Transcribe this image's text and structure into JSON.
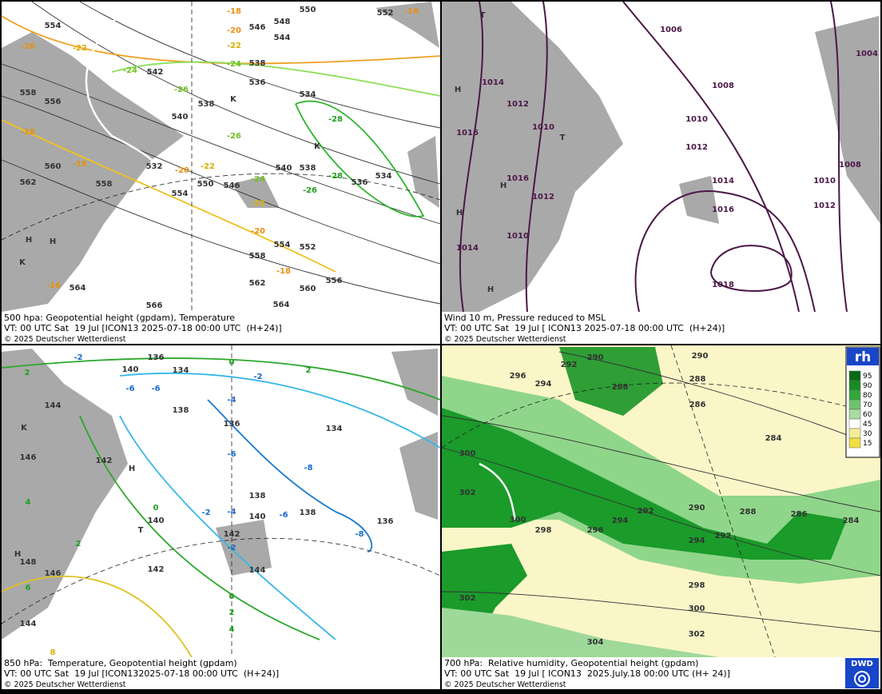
{
  "panels": [
    {
      "caption": [
        "500 hpa: Geopotential height (gpdam), Temperature",
        "VT: 00 UTC Sat  19 Jul [ICON13 2025-07-18 00:00 UTC  (H+24)]",
        "© 2025 Deutscher Wetterdienst"
      ],
      "labels": [
        "550",
        "552",
        "548",
        "546",
        "544",
        "542",
        "538",
        "536",
        "534",
        "540",
        "538",
        "532",
        "540",
        "538",
        "536",
        "534",
        "554",
        "550",
        "546",
        "556",
        "558",
        "560",
        "562",
        "564",
        "566",
        "554",
        "552",
        "558",
        "560",
        "562",
        "564",
        "556",
        "558",
        "554",
        "-18",
        "-20",
        "-22",
        "-24",
        "-26",
        "-26",
        "-28",
        "-28",
        "-26",
        "-24",
        "-22",
        "-20",
        "-18",
        "-18",
        "-16",
        "-16",
        "-20",
        "-22",
        "-24",
        "-22",
        "-20",
        "-18",
        "H",
        "H",
        "K",
        "K",
        "K"
      ]
    },
    {
      "caption": [
        "Wind 10 m, Pressure reduced to MSL",
        "VT: 00 UTC Sat  19 Jul [ ICON13 2025-07-18 00:00 UTC  (H+24)]",
        "© 2025 Deutscher Wetterdienst"
      ],
      "labels": [
        "1006",
        "1004",
        "1014",
        "1012",
        "1008",
        "1010",
        "1010",
        "1012",
        "1016",
        "1016",
        "1012",
        "1014",
        "1008",
        "1010",
        "1012",
        "1016",
        "1010",
        "1014",
        "1018",
        "H",
        "H",
        "T",
        "T",
        "H",
        "H"
      ]
    },
    {
      "caption": [
        "850 hPa:  Temperature, Geopotential height (gpdam)",
        "VT: 00 UTC Sat  19 Jul [ICON132025-07-18 00:00 UTC  (H+24)]",
        "© 2025 Deutscher Wetterdienst"
      ],
      "labels": [
        "-2",
        "2",
        "136",
        "134",
        "0",
        "-2",
        "2",
        "140",
        "-6",
        "-6",
        "144",
        "138",
        "136",
        "-4",
        "134",
        "146",
        "142",
        "-6",
        "-8",
        "4",
        "0",
        "-2",
        "-4",
        "-6",
        "138",
        "140",
        "138",
        "140",
        "136",
        "-8",
        "142",
        "-2",
        "2",
        "148",
        "146",
        "142",
        "144",
        "6",
        "0",
        "2",
        "4",
        "144",
        "8",
        "H",
        "H",
        "K",
        "T"
      ]
    },
    {
      "caption": [
        "700 hPa:  Relative humidity, Geopotential height (gpdam)",
        "VT: 00 UTC Sat  19 Jul [ ICON13  2025.July.18 00:00 UTC (H+ 24)]",
        "© 2025 Deutscher Wetterdienst"
      ],
      "labels": [
        "290",
        "288",
        "286",
        "292",
        "290",
        "288",
        "294",
        "296",
        "284",
        "300",
        "302",
        "300",
        "298",
        "296",
        "294",
        "292",
        "290",
        "288",
        "286",
        "284",
        "294",
        "292",
        "298",
        "300",
        "302",
        "302",
        "304"
      ]
    }
  ],
  "legend": {
    "title": "rh",
    "levels": [
      "95",
      "90",
      "80",
      "70",
      "60",
      "45",
      "30",
      "15"
    ]
  },
  "logo": "DWD"
}
